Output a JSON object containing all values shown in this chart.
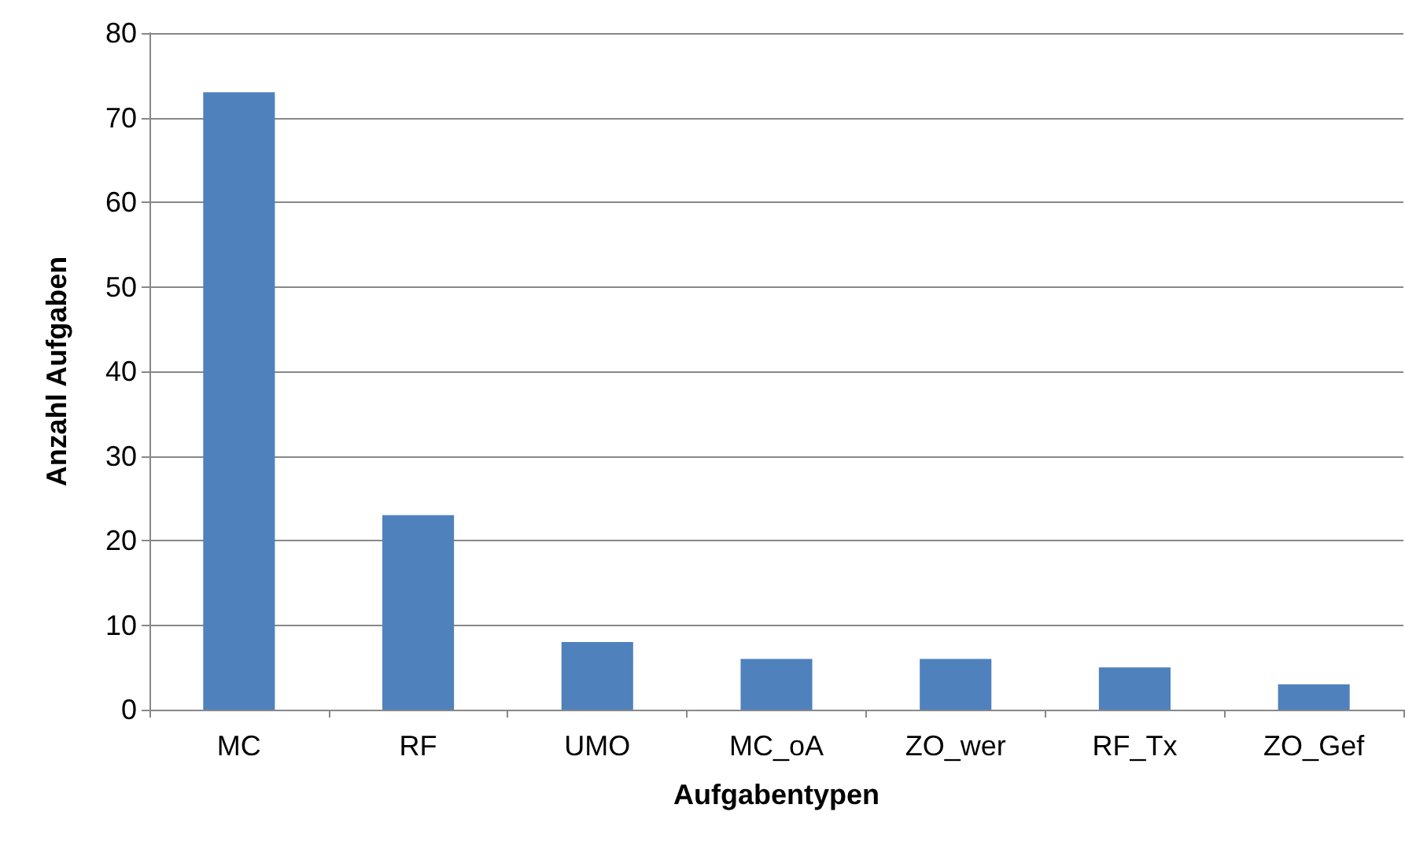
{
  "chart_data": {
    "type": "bar",
    "xlabel": "Aufgabentypen",
    "ylabel": "Anzahl Aufgaben",
    "categories": [
      "MC",
      "RF",
      "UMO",
      "MC_oA",
      "ZO_wer",
      "RF_Tx",
      "ZO_Gef"
    ],
    "values": [
      73,
      23,
      8,
      6,
      6,
      5,
      3
    ],
    "color": "#4f81bd",
    "ylim": [
      0,
      80
    ],
    "yticks": [
      0,
      10,
      20,
      30,
      40,
      50,
      60,
      70,
      80
    ],
    "grid": "y"
  }
}
